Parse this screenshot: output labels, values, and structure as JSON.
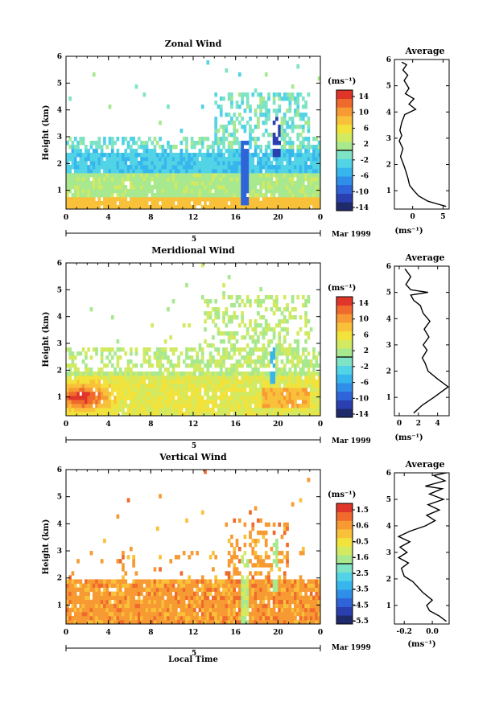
{
  "chart_data": [
    {
      "type": "heatmap",
      "title": "Zonal Wind",
      "ylabel": "Height (km)",
      "xticks": [
        "0",
        "4",
        "8",
        "12",
        "16",
        "20",
        "0"
      ],
      "yticks": [
        "1",
        "2",
        "3",
        "4",
        "5",
        "6"
      ],
      "date_label": "5",
      "month_label": "Mar 1999",
      "colorbar": {
        "unit": "(ms⁻¹)",
        "ticks": [
          "14",
          "10",
          "6",
          "2",
          "-2",
          "-6",
          "-10",
          "-14"
        ],
        "range": [
          -14,
          14
        ]
      },
      "profile": {
        "title": "Average",
        "xlabel": "(ms⁻¹)",
        "xticks": [
          "0",
          "5"
        ],
        "xlim": [
          -3,
          6
        ],
        "yticks": [
          "1",
          "2",
          "3",
          "4",
          "5",
          "6"
        ],
        "points": [
          [
            5.5,
            0.4
          ],
          [
            4.0,
            0.5
          ],
          [
            2.5,
            0.6
          ],
          [
            1.0,
            0.8
          ],
          [
            0.2,
            1.0
          ],
          [
            -0.5,
            1.2
          ],
          [
            -0.8,
            1.5
          ],
          [
            -1.2,
            1.8
          ],
          [
            -1.5,
            2.0
          ],
          [
            -2.0,
            2.3
          ],
          [
            -1.6,
            2.6
          ],
          [
            -2.2,
            2.9
          ],
          [
            -1.8,
            3.1
          ],
          [
            -2.1,
            3.3
          ],
          [
            -1.8,
            3.6
          ],
          [
            -1.3,
            3.9
          ],
          [
            0.5,
            4.1
          ],
          [
            -0.6,
            4.3
          ],
          [
            0.2,
            4.5
          ],
          [
            -1.2,
            4.7
          ],
          [
            -0.6,
            4.9
          ],
          [
            -1.4,
            5.2
          ],
          [
            -0.8,
            5.4
          ],
          [
            -1.6,
            5.6
          ],
          [
            -1.0,
            5.8
          ],
          [
            -1.8,
            5.9
          ]
        ]
      }
    },
    {
      "type": "heatmap",
      "title": "Meridional Wind",
      "ylabel": "Height (km)",
      "xticks": [
        "0",
        "4",
        "8",
        "12",
        "16",
        "20",
        "0"
      ],
      "yticks": [
        "1",
        "2",
        "3",
        "4",
        "5",
        "6"
      ],
      "date_label": "5",
      "month_label": "Mar 1999",
      "colorbar": {
        "unit": "(ms⁻¹)",
        "ticks": [
          "14",
          "10",
          "6",
          "2",
          "-2",
          "-6",
          "-10",
          "-14"
        ],
        "range": [
          -14,
          14
        ]
      },
      "profile": {
        "title": "Average",
        "xlabel": "(ms⁻¹)",
        "xticks": [
          "0",
          "2",
          "4"
        ],
        "xlim": [
          -0.5,
          5.2
        ],
        "yticks": [
          "1",
          "2",
          "3",
          "4",
          "5",
          "6"
        ],
        "points": [
          [
            1.5,
            0.4
          ],
          [
            2.4,
            0.7
          ],
          [
            3.6,
            1.0
          ],
          [
            5.1,
            1.4
          ],
          [
            4.0,
            1.7
          ],
          [
            3.0,
            2.0
          ],
          [
            2.7,
            2.3
          ],
          [
            2.4,
            2.5
          ],
          [
            2.9,
            2.8
          ],
          [
            2.5,
            3.0
          ],
          [
            3.1,
            3.3
          ],
          [
            2.6,
            3.6
          ],
          [
            3.2,
            3.9
          ],
          [
            2.5,
            4.2
          ],
          [
            2.2,
            4.5
          ],
          [
            1.5,
            4.7
          ],
          [
            1.2,
            4.9
          ],
          [
            3.0,
            5.0
          ],
          [
            1.2,
            5.1
          ],
          [
            0.7,
            5.3
          ],
          [
            1.2,
            5.6
          ],
          [
            0.6,
            5.9
          ]
        ]
      }
    },
    {
      "type": "heatmap",
      "title": "Vertical Wind",
      "ylabel": "Height (km)",
      "xlabel": "Local Time",
      "xticks": [
        "0",
        "4",
        "8",
        "12",
        "16",
        "20",
        "0"
      ],
      "yticks": [
        "1",
        "2",
        "3",
        "4",
        "5",
        "6"
      ],
      "date_label": "5",
      "month_label": "Mar 1999",
      "colorbar": {
        "unit": "(ms⁻¹)",
        "ticks": [
          "1.5",
          "0.6",
          "-0.5",
          "-1.6",
          "-2.5",
          "-3.5",
          "-4.5",
          "-5.5"
        ],
        "range": [
          -6,
          2
        ]
      },
      "profile": {
        "title": "Average",
        "xlabel": "(ms⁻¹)",
        "xticks": [
          "-0.2",
          "0.0"
        ],
        "xlim": [
          -0.27,
          0.12
        ],
        "yticks": [
          "1",
          "2",
          "3",
          "4",
          "5",
          "6"
        ],
        "points": [
          [
            0.1,
            0.4
          ],
          [
            0.05,
            0.6
          ],
          [
            -0.02,
            0.8
          ],
          [
            -0.04,
            1.0
          ],
          [
            0.0,
            1.2
          ],
          [
            -0.07,
            1.5
          ],
          [
            -0.14,
            1.9
          ],
          [
            -0.2,
            2.1
          ],
          [
            -0.22,
            2.4
          ],
          [
            -0.17,
            2.6
          ],
          [
            -0.24,
            2.8
          ],
          [
            -0.18,
            3.0
          ],
          [
            -0.23,
            3.2
          ],
          [
            -0.16,
            3.4
          ],
          [
            -0.24,
            3.6
          ],
          [
            -0.16,
            3.8
          ],
          [
            -0.05,
            4.0
          ],
          [
            0.02,
            4.2
          ],
          [
            -0.04,
            4.4
          ],
          [
            0.05,
            4.6
          ],
          [
            -0.03,
            4.8
          ],
          [
            0.08,
            5.0
          ],
          [
            -0.02,
            5.2
          ],
          [
            0.07,
            5.4
          ],
          [
            -0.05,
            5.5
          ],
          [
            0.09,
            5.7
          ],
          [
            0.01,
            5.9
          ],
          [
            0.1,
            6.0
          ]
        ]
      }
    }
  ]
}
